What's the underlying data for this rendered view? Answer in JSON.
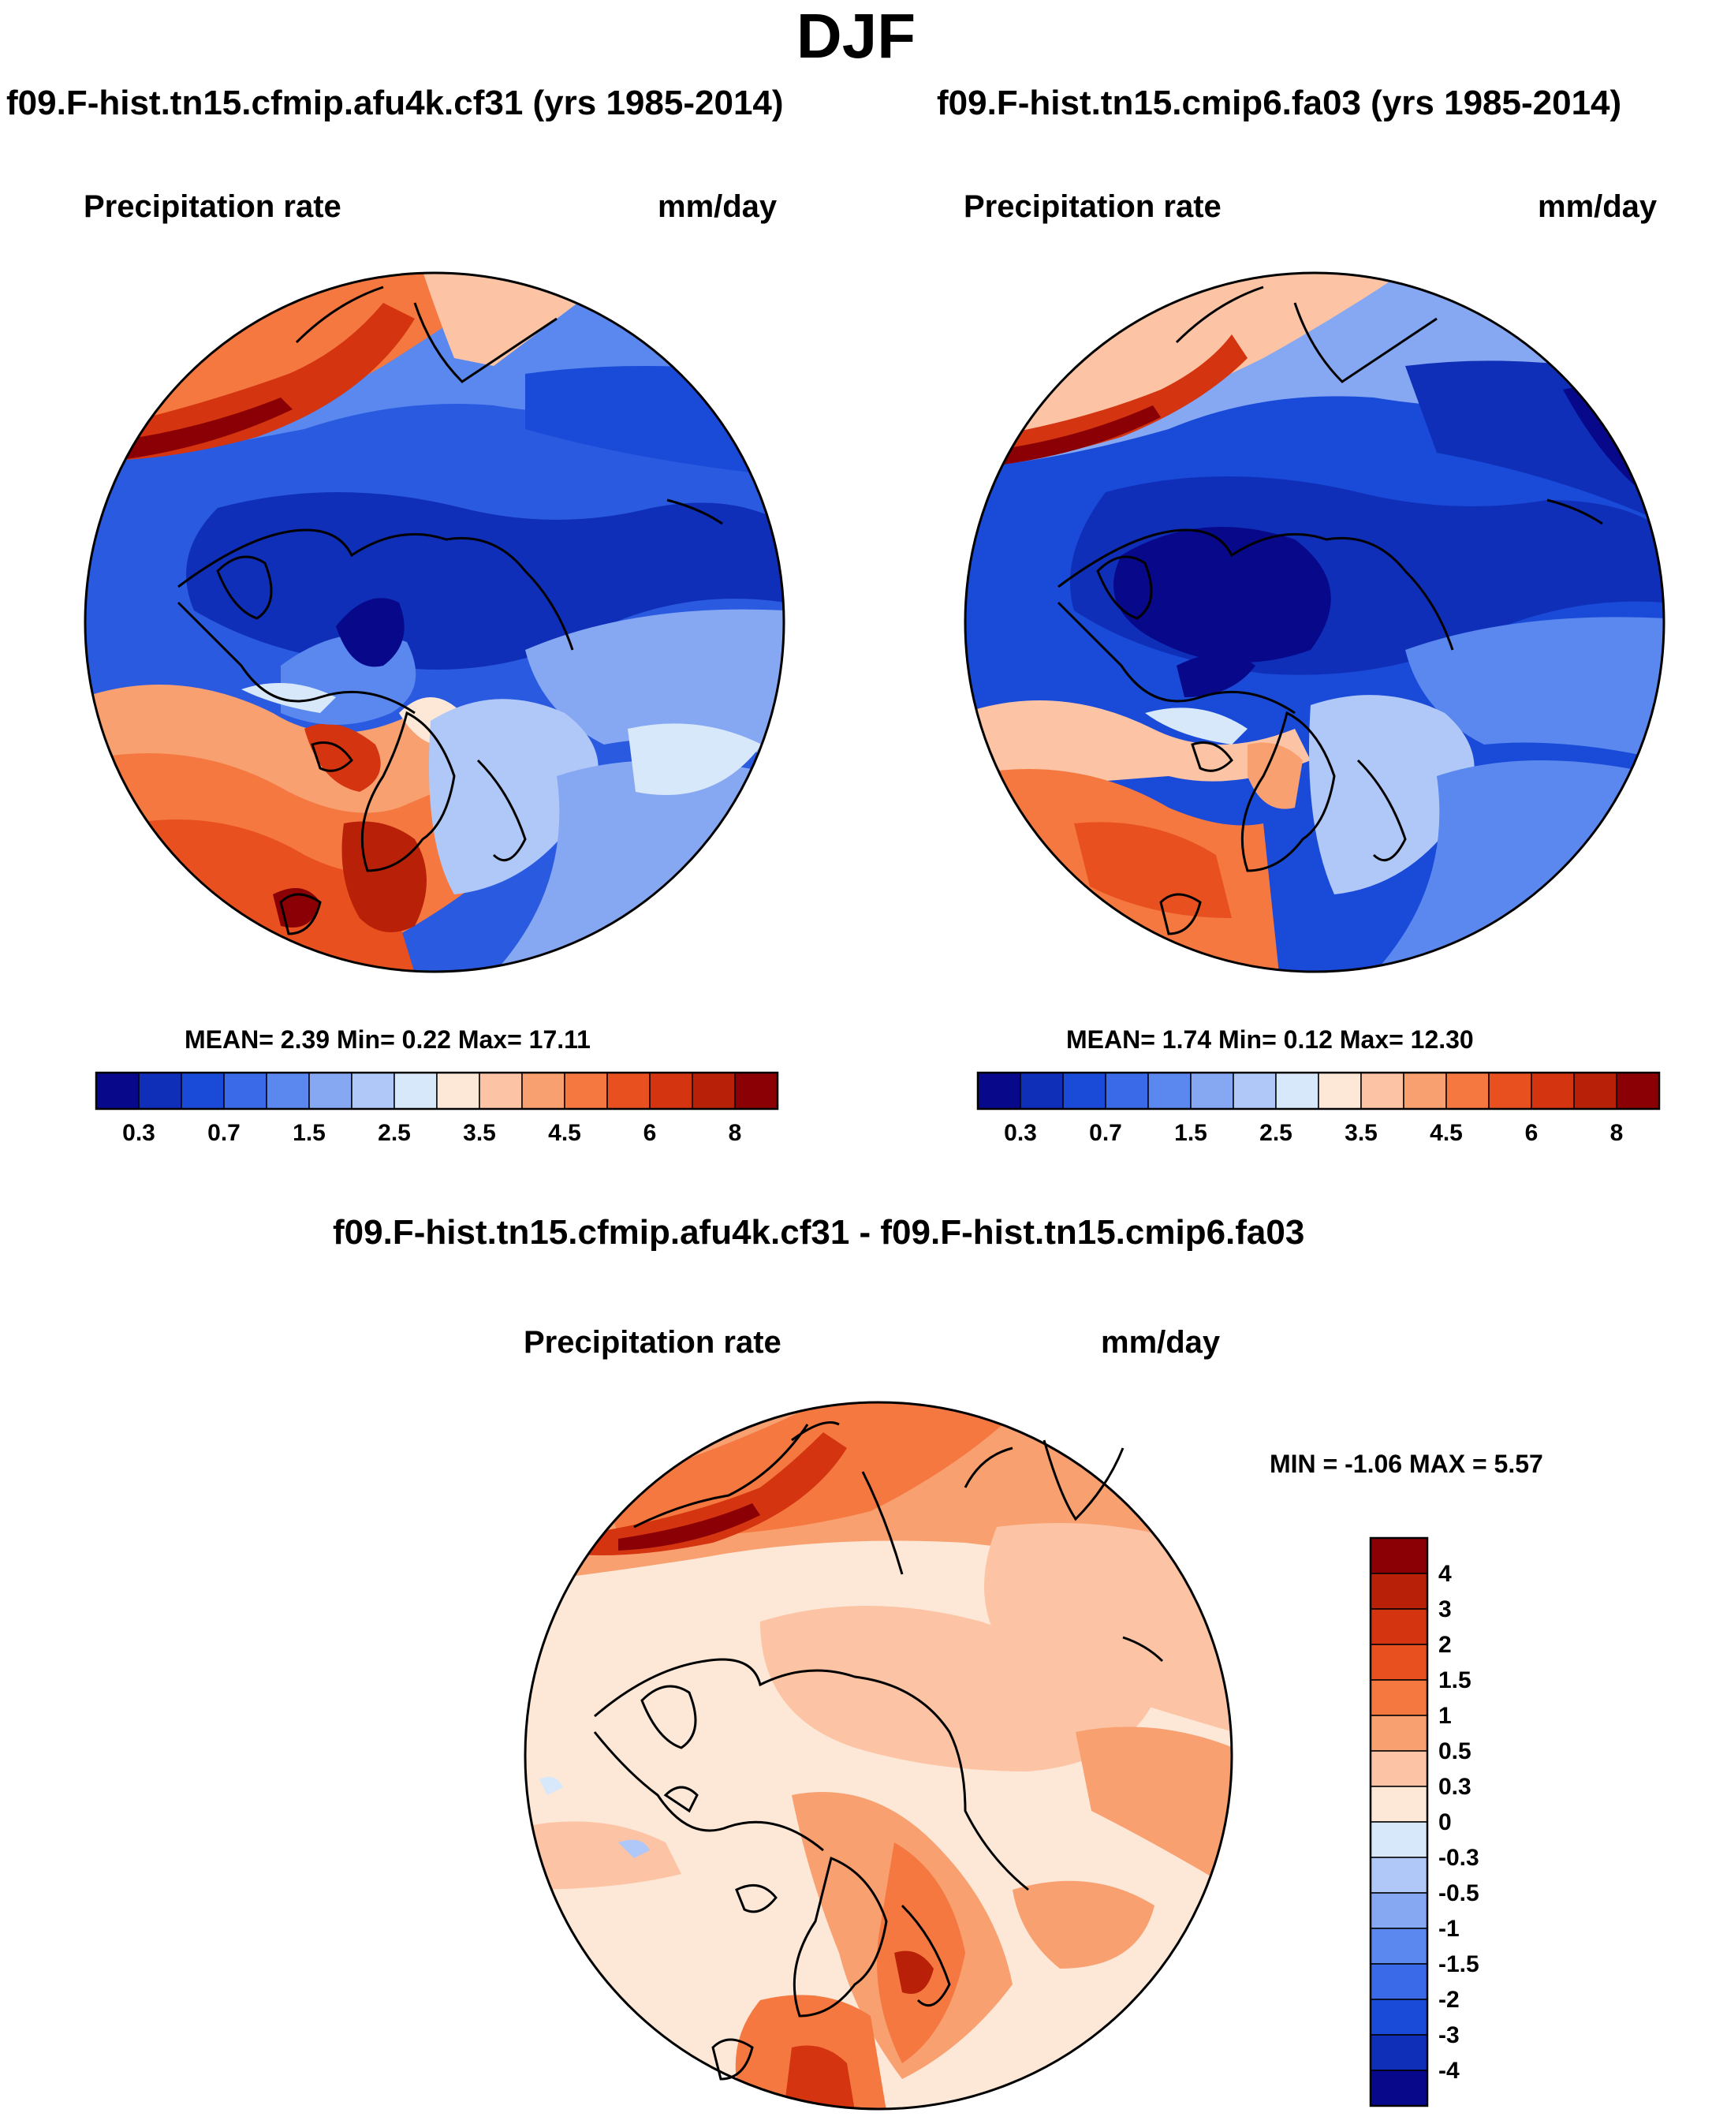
{
  "page": {
    "title": "DJF"
  },
  "panels": [
    {
      "title": "f09.F-hist.tn15.cfmip.afu4k.cf31 (yrs 1985-2014)",
      "variable": "Precipitation rate",
      "units": "mm/day",
      "stats": "MEAN=   2.39  Min=   0.22  Max=  17.11"
    },
    {
      "title": "f09.F-hist.tn15.cmip6.fa03 (yrs 1985-2014)",
      "variable": "Precipitation rate",
      "units": "mm/day",
      "stats": "MEAN=   1.74  Min=   0.12  Max=  12.30"
    },
    {
      "title": "f09.F-hist.tn15.cfmip.afu4k.cf31 - f09.F-hist.tn15.cmip6.fa03",
      "variable": "Precipitation rate",
      "units": "mm/day",
      "stats": "MIN =  -1.06 MAX =    5.57"
    }
  ],
  "chart_data": [
    {
      "type": "heatmap",
      "projection": "north polar stereographic",
      "title": "f09.F-hist.tn15.cfmip.afu4k.cf31 (yrs 1985-2014)",
      "field": "Precipitation rate",
      "units": "mm/day",
      "mean": 2.39,
      "min": 0.22,
      "max": 17.11,
      "colorbar": {
        "orientation": "horizontal",
        "tick_labels": [
          "0.3",
          "0.7",
          "1.5",
          "2.5",
          "3.5",
          "4.5",
          "6",
          "8"
        ],
        "colors": [
          "#08088a",
          "#0f2fb8",
          "#1a4ad8",
          "#3a6ae8",
          "#5a88ee",
          "#86a8f2",
          "#b0c8f7",
          "#d8e8fb",
          "#fde8d8",
          "#fcc4a4",
          "#f8a070",
          "#f47840",
          "#e85020",
          "#d43410",
          "#b82008",
          "#8a0004"
        ]
      }
    },
    {
      "type": "heatmap",
      "projection": "north polar stereographic",
      "title": "f09.F-hist.tn15.cmip6.fa03 (yrs 1985-2014)",
      "field": "Precipitation rate",
      "units": "mm/day",
      "mean": 1.74,
      "min": 0.12,
      "max": 12.3,
      "colorbar": {
        "orientation": "horizontal",
        "tick_labels": [
          "0.3",
          "0.7",
          "1.5",
          "2.5",
          "3.5",
          "4.5",
          "6",
          "8"
        ],
        "colors": [
          "#08088a",
          "#0f2fb8",
          "#1a4ad8",
          "#3a6ae8",
          "#5a88ee",
          "#86a8f2",
          "#b0c8f7",
          "#d8e8fb",
          "#fde8d8",
          "#fcc4a4",
          "#f8a070",
          "#f47840",
          "#e85020",
          "#d43410",
          "#b82008",
          "#8a0004"
        ]
      }
    },
    {
      "type": "heatmap",
      "projection": "north polar stereographic",
      "title": "f09.F-hist.tn15.cfmip.afu4k.cf31 - f09.F-hist.tn15.cmip6.fa03",
      "field": "Precipitation rate",
      "units": "mm/day",
      "min": -1.06,
      "max": 5.57,
      "colorbar": {
        "orientation": "vertical",
        "tick_labels": [
          "4",
          "3",
          "2",
          "1.5",
          "1",
          "0.5",
          "0.3",
          "0",
          "-0.3",
          "-0.5",
          "-1",
          "-1.5",
          "-2",
          "-3",
          "-4"
        ],
        "colors": [
          "#8a0004",
          "#b82008",
          "#d43410",
          "#e85020",
          "#f47840",
          "#f8a070",
          "#fcc4a4",
          "#fde8d8",
          "#d8e8fb",
          "#b0c8f7",
          "#86a8f2",
          "#5a88ee",
          "#3a6ae8",
          "#1a4ad8",
          "#0f2fb8",
          "#08088a"
        ]
      }
    }
  ]
}
